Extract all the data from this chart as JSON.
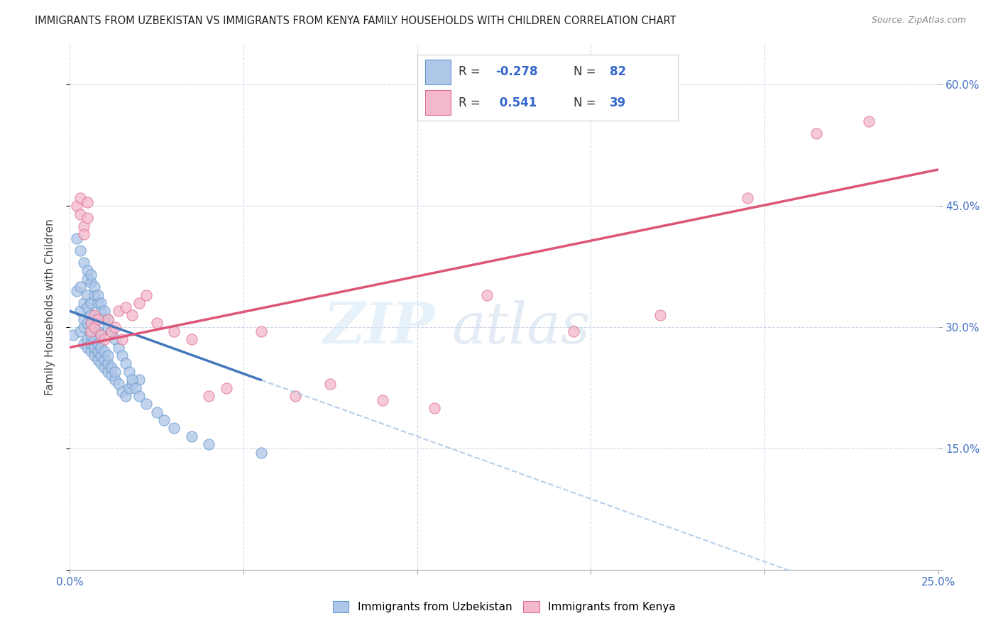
{
  "title": "IMMIGRANTS FROM UZBEKISTAN VS IMMIGRANTS FROM KENYA FAMILY HOUSEHOLDS WITH CHILDREN CORRELATION CHART",
  "source": "Source: ZipAtlas.com",
  "ylabel": "Family Households with Children",
  "x_min": 0.0,
  "x_max": 0.25,
  "y_min": 0.0,
  "y_max": 0.65,
  "x_ticks": [
    0.0,
    0.05,
    0.1,
    0.15,
    0.2,
    0.25
  ],
  "x_tick_labels": [
    "0.0%",
    "",
    "",
    "",
    "",
    "25.0%"
  ],
  "y_ticks": [
    0.0,
    0.15,
    0.3,
    0.45,
    0.6
  ],
  "y_tick_labels": [
    "",
    "15.0%",
    "30.0%",
    "45.0%",
    "60.0%"
  ],
  "color_uzbekistan_fill": "#aec6e8",
  "color_uzbekistan_edge": "#6699cc",
  "color_kenya_fill": "#f4b8cc",
  "color_kenya_edge": "#e07090",
  "color_uzbekistan_line": "#4477bb",
  "color_kenya_line": "#dd5577",
  "color_uzbekistan_dashed": "#99bbdd",
  "watermark_zip_color": "#d0dff0",
  "watermark_atlas_color": "#c0d0e8",
  "scatter_uzbekistan_x": [
    0.001,
    0.002,
    0.002,
    0.003,
    0.003,
    0.003,
    0.004,
    0.004,
    0.004,
    0.004,
    0.005,
    0.005,
    0.005,
    0.005,
    0.005,
    0.006,
    0.006,
    0.006,
    0.006,
    0.006,
    0.006,
    0.007,
    0.007,
    0.007,
    0.007,
    0.007,
    0.008,
    0.008,
    0.008,
    0.008,
    0.009,
    0.009,
    0.009,
    0.009,
    0.01,
    0.01,
    0.01,
    0.011,
    0.011,
    0.011,
    0.012,
    0.012,
    0.013,
    0.013,
    0.014,
    0.015,
    0.016,
    0.017,
    0.018,
    0.02,
    0.003,
    0.004,
    0.005,
    0.005,
    0.006,
    0.006,
    0.007,
    0.007,
    0.008,
    0.008,
    0.009,
    0.009,
    0.01,
    0.01,
    0.011,
    0.011,
    0.012,
    0.013,
    0.014,
    0.015,
    0.016,
    0.017,
    0.018,
    0.019,
    0.02,
    0.022,
    0.025,
    0.027,
    0.03,
    0.035,
    0.04,
    0.055
  ],
  "scatter_uzbekistan_y": [
    0.29,
    0.345,
    0.41,
    0.295,
    0.32,
    0.35,
    0.28,
    0.3,
    0.31,
    0.33,
    0.275,
    0.285,
    0.305,
    0.325,
    0.34,
    0.27,
    0.28,
    0.29,
    0.305,
    0.315,
    0.33,
    0.265,
    0.275,
    0.285,
    0.3,
    0.31,
    0.26,
    0.27,
    0.28,
    0.295,
    0.255,
    0.265,
    0.275,
    0.29,
    0.25,
    0.26,
    0.27,
    0.245,
    0.255,
    0.265,
    0.24,
    0.25,
    0.235,
    0.245,
    0.23,
    0.22,
    0.215,
    0.225,
    0.23,
    0.235,
    0.395,
    0.38,
    0.36,
    0.37,
    0.355,
    0.365,
    0.34,
    0.35,
    0.33,
    0.34,
    0.32,
    0.33,
    0.31,
    0.32,
    0.3,
    0.31,
    0.295,
    0.285,
    0.275,
    0.265,
    0.255,
    0.245,
    0.235,
    0.225,
    0.215,
    0.205,
    0.195,
    0.185,
    0.175,
    0.165,
    0.155,
    0.145
  ],
  "scatter_kenya_x": [
    0.002,
    0.003,
    0.003,
    0.004,
    0.004,
    0.005,
    0.005,
    0.006,
    0.006,
    0.007,
    0.007,
    0.008,
    0.009,
    0.01,
    0.011,
    0.012,
    0.013,
    0.014,
    0.015,
    0.016,
    0.018,
    0.02,
    0.022,
    0.025,
    0.03,
    0.035,
    0.04,
    0.045,
    0.055,
    0.065,
    0.075,
    0.09,
    0.105,
    0.12,
    0.145,
    0.17,
    0.195,
    0.215,
    0.23
  ],
  "scatter_kenya_y": [
    0.45,
    0.46,
    0.44,
    0.425,
    0.415,
    0.455,
    0.435,
    0.295,
    0.305,
    0.3,
    0.315,
    0.31,
    0.29,
    0.285,
    0.31,
    0.295,
    0.3,
    0.32,
    0.285,
    0.325,
    0.315,
    0.33,
    0.34,
    0.305,
    0.295,
    0.285,
    0.215,
    0.225,
    0.295,
    0.215,
    0.23,
    0.21,
    0.2,
    0.34,
    0.295,
    0.315,
    0.46,
    0.54,
    0.555
  ],
  "trendline_uz_x0": 0.0,
  "trendline_uz_x_solid_end": 0.055,
  "trendline_uz_x_dashed_end": 0.25,
  "trendline_uz_intercept": 0.32,
  "trendline_uz_slope": -1.55,
  "trendline_ke_x0": 0.0,
  "trendline_ke_x_end": 0.25,
  "trendline_ke_intercept": 0.275,
  "trendline_ke_slope": 0.88
}
